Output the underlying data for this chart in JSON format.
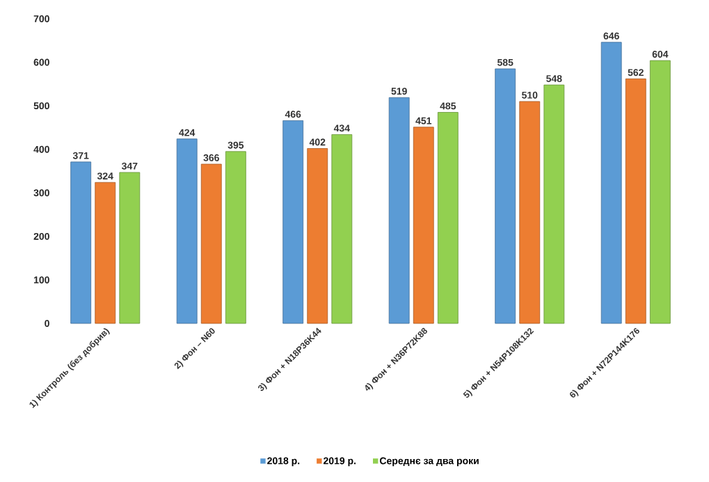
{
  "chart_data": {
    "type": "bar",
    "categories": [
      "1) Контроль (без добрив)",
      "2) Фон – N60",
      "3) Фон + N18P36K44",
      "4) Фон + N36P72K88",
      "5) Фон + N54P108K132",
      "6) Фон + N72P144K176"
    ],
    "series": [
      {
        "name": "2018 р.",
        "color": "#5b9bd5",
        "values": [
          371,
          424,
          466,
          519,
          585,
          646
        ]
      },
      {
        "name": "2019 р.",
        "color": "#ed7d31",
        "values": [
          324,
          366,
          402,
          451,
          510,
          562
        ]
      },
      {
        "name": "Середнє за два роки",
        "color": "#92d050",
        "values": [
          347,
          395,
          434,
          485,
          548,
          604
        ]
      }
    ],
    "ylim": [
      0,
      700
    ],
    "yticks": [
      0,
      100,
      200,
      300,
      400,
      500,
      600,
      700
    ],
    "grid": false,
    "legend": "bottom",
    "data_labels": true
  }
}
